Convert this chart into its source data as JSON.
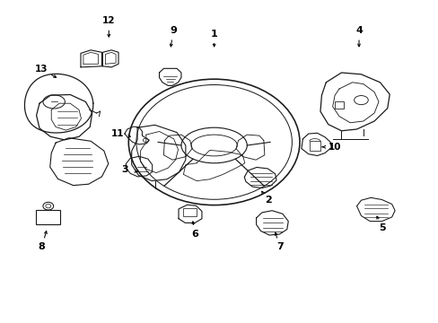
{
  "bg_color": "#ffffff",
  "line_color": "#1a1a1a",
  "fig_width": 4.89,
  "fig_height": 3.6,
  "dpi": 100,
  "label_positions": {
    "1": [
      0.488,
      0.895,
      0.488,
      0.845
    ],
    "2": [
      0.612,
      0.38,
      0.595,
      0.41
    ],
    "3": [
      0.285,
      0.475,
      0.315,
      0.468
    ],
    "4": [
      0.818,
      0.905,
      0.818,
      0.845
    ],
    "5": [
      0.872,
      0.295,
      0.855,
      0.34
    ],
    "6": [
      0.445,
      0.275,
      0.438,
      0.325
    ],
    "7": [
      0.638,
      0.235,
      0.625,
      0.29
    ],
    "8": [
      0.095,
      0.235,
      0.108,
      0.295
    ],
    "9": [
      0.395,
      0.905,
      0.388,
      0.845
    ],
    "10": [
      0.762,
      0.545,
      0.728,
      0.545
    ],
    "11": [
      0.268,
      0.585,
      0.305,
      0.575
    ],
    "12": [
      0.248,
      0.935,
      0.248,
      0.875
    ],
    "13": [
      0.095,
      0.785,
      0.135,
      0.755
    ]
  }
}
